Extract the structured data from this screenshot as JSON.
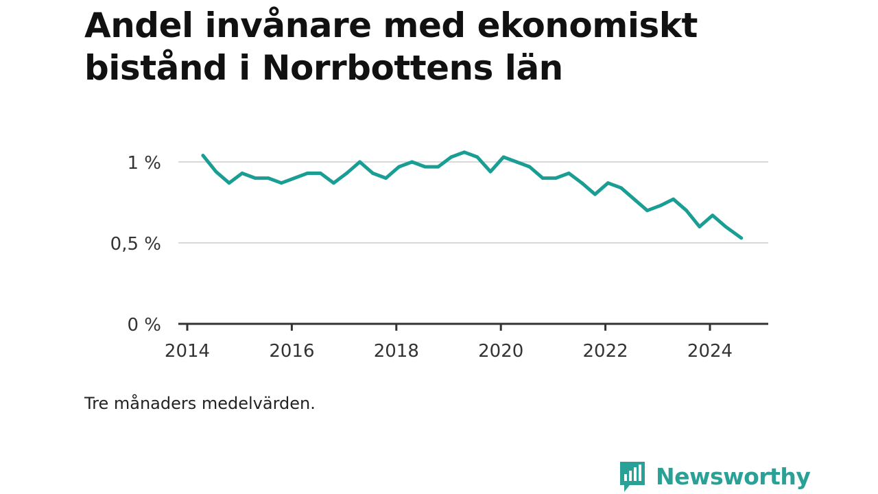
{
  "title": "Andel invånare med ekonomiskt bistånd i Norrbottens län",
  "note": "Tre månaders medelvärden.",
  "brand": {
    "name": "Newsworthy",
    "icon": "newsworthy-logo-icon"
  },
  "colors": {
    "line": "#1a9e94",
    "grid": "#d9d9d9",
    "axis": "#333333",
    "brand": "#2aa196"
  },
  "chart_data": {
    "type": "line",
    "title": "Andel invånare med ekonomiskt bistånd i Norrbottens län",
    "xlabel": "",
    "ylabel": "",
    "xlim": [
      2014.0,
      2025.1
    ],
    "ylim": [
      0,
      1.1
    ],
    "y_ticks": [
      0,
      0.5,
      1
    ],
    "y_tick_labels": [
      "0 %",
      "0,5 %",
      "1 %"
    ],
    "x_ticks": [
      2014,
      2016,
      2018,
      2020,
      2022,
      2024
    ],
    "x_tick_labels": [
      "2014",
      "2016",
      "2018",
      "2020",
      "2022",
      "2024"
    ],
    "grid": true,
    "series": [
      {
        "x": [
          2014.3,
          2014.55,
          2014.8,
          2015.05,
          2015.3,
          2015.55,
          2015.8,
          2016.05,
          2016.3,
          2016.55,
          2016.8,
          2017.05,
          2017.3,
          2017.55,
          2017.8,
          2018.05,
          2018.3,
          2018.55,
          2018.8,
          2019.05,
          2019.3,
          2019.55,
          2019.8,
          2020.05,
          2020.3,
          2020.55,
          2020.8,
          2021.05,
          2021.3,
          2021.55,
          2021.8,
          2022.05,
          2022.3,
          2022.55,
          2022.8,
          2023.05,
          2023.3,
          2023.55,
          2023.8,
          2024.05,
          2024.3,
          2024.6
        ],
        "values": [
          1.04,
          0.94,
          0.87,
          0.93,
          0.9,
          0.9,
          0.87,
          0.9,
          0.93,
          0.93,
          0.87,
          0.93,
          1.0,
          0.93,
          0.9,
          0.97,
          1.0,
          0.97,
          0.97,
          1.03,
          1.06,
          1.03,
          0.94,
          1.03,
          1.0,
          0.97,
          0.9,
          0.9,
          0.93,
          0.87,
          0.8,
          0.87,
          0.84,
          0.77,
          0.7,
          0.73,
          0.77,
          0.7,
          0.6,
          0.67,
          0.6,
          0.53
        ]
      }
    ]
  }
}
